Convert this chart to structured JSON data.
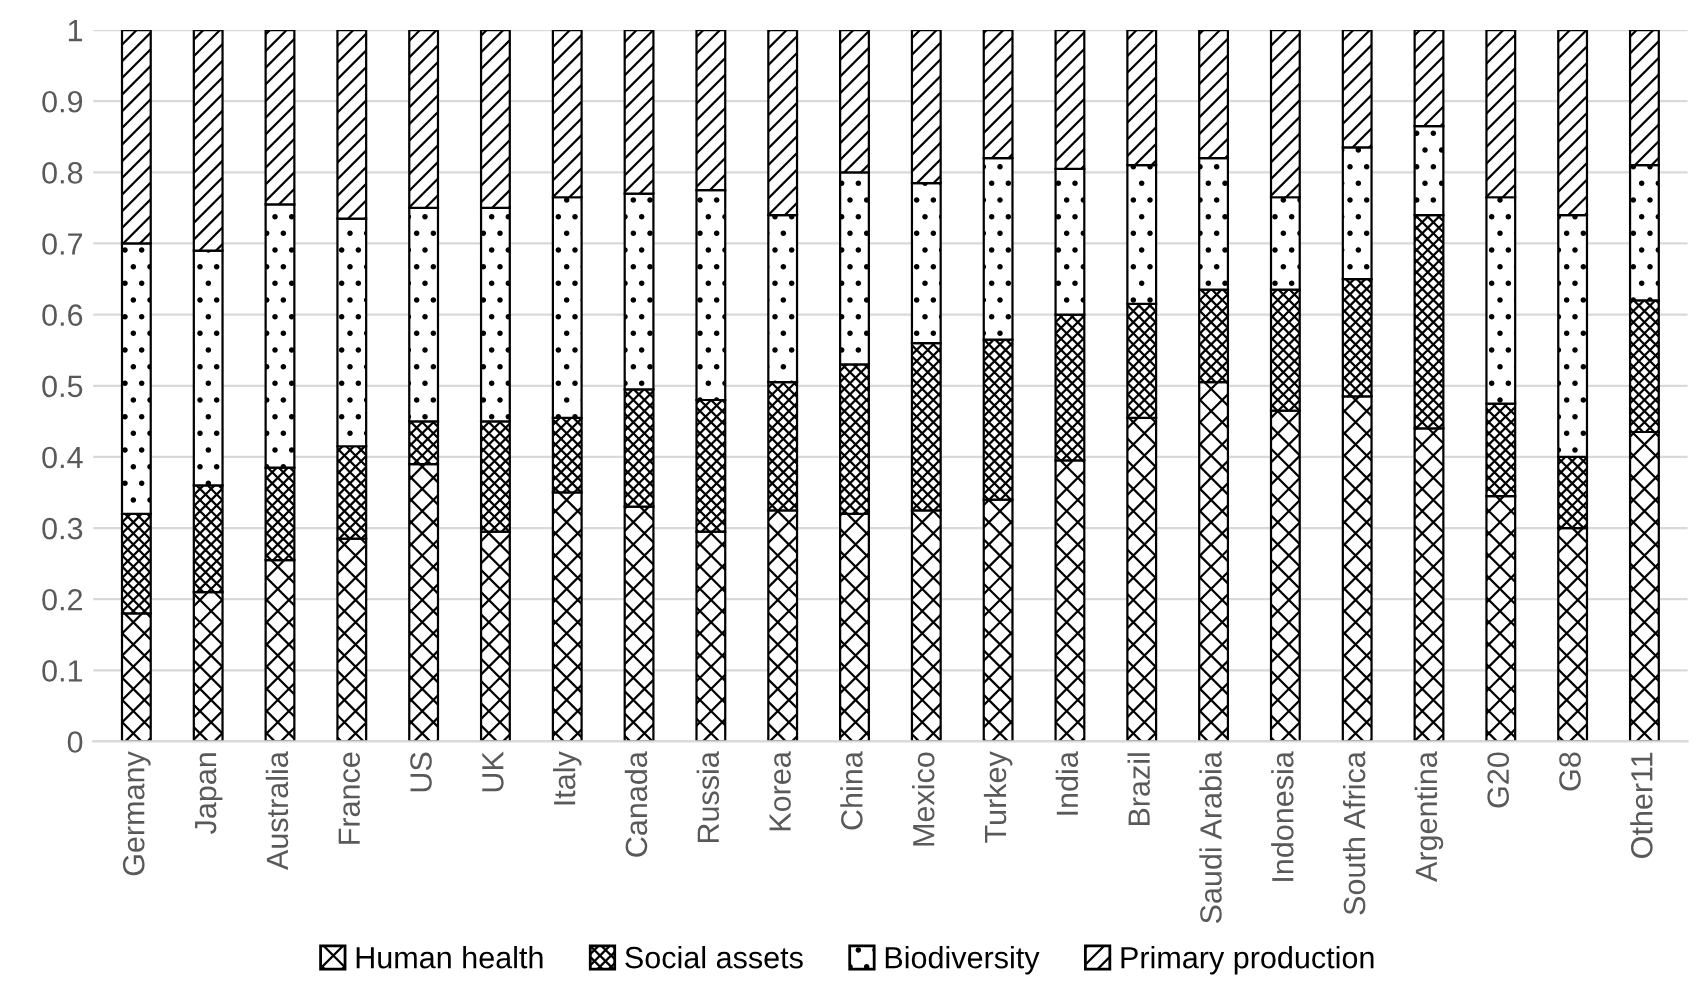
{
  "chart_data": {
    "type": "bar",
    "stacked": true,
    "categories": [
      "Germany",
      "Japan",
      "Australia",
      "France",
      "US",
      "UK",
      "Italy",
      "Canada",
      "Russia",
      "Korea",
      "China",
      "Mexico",
      "Turkey",
      "India",
      "Brazil",
      "Saudi Arabia",
      "Indonesia",
      "South Africa",
      "Argentina",
      "G20",
      "G8",
      "Other11"
    ],
    "series": [
      {
        "name": "Human health",
        "color": "#000000",
        "values": [
          0.18,
          0.21,
          0.255,
          0.285,
          0.39,
          0.295,
          0.35,
          0.33,
          0.295,
          0.325,
          0.32,
          0.325,
          0.34,
          0.395,
          0.455,
          0.505,
          0.465,
          0.485,
          0.44,
          0.345,
          0.3,
          0.435
        ]
      },
      {
        "name": "Social assets",
        "color": "#000000",
        "values": [
          0.14,
          0.15,
          0.13,
          0.13,
          0.06,
          0.155,
          0.105,
          0.165,
          0.185,
          0.18,
          0.21,
          0.235,
          0.225,
          0.205,
          0.16,
          0.13,
          0.17,
          0.165,
          0.3,
          0.13,
          0.1,
          0.185
        ]
      },
      {
        "name": "Biodiversity",
        "color": "#000000",
        "values": [
          0.38,
          0.33,
          0.37,
          0.32,
          0.3,
          0.3,
          0.31,
          0.275,
          0.295,
          0.235,
          0.27,
          0.225,
          0.255,
          0.205,
          0.195,
          0.185,
          0.13,
          0.185,
          0.125,
          0.29,
          0.34,
          0.19
        ]
      },
      {
        "name": "Primary production",
        "color": "#000000",
        "values": [
          0.3,
          0.31,
          0.245,
          0.265,
          0.25,
          0.25,
          0.235,
          0.23,
          0.225,
          0.26,
          0.2,
          0.215,
          0.18,
          0.195,
          0.19,
          0.18,
          0.235,
          0.165,
          0.135,
          0.235,
          0.26,
          0.19
        ]
      }
    ],
    "ylim": [
      0,
      1
    ],
    "yticks": [
      0,
      0.1,
      0.2,
      0.3,
      0.4,
      0.5,
      0.6,
      0.7,
      0.8,
      0.9,
      1
    ],
    "grid": "y",
    "legend": "bottom"
  }
}
